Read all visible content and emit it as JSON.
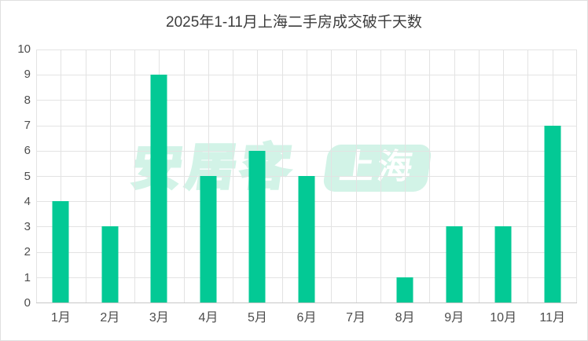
{
  "title": "2025年1-11月上海二手房成交破千天数",
  "colors": {
    "bar": "#03c995",
    "grid": "#e3e3e3",
    "axis_line": "#c7c7c7",
    "tick_text": "#4d4d4d",
    "title_text": "#3d3d3d",
    "watermark": "#d2f3e7",
    "background": "#ffffff"
  },
  "watermark": {
    "brand": "安居客",
    "city": "上海"
  },
  "chart_data": {
    "type": "bar",
    "title": "2025年1-11月上海二手房成交破千天数",
    "categories": [
      "1月",
      "2月",
      "3月",
      "4月",
      "5月",
      "6月",
      "7月",
      "8月",
      "9月",
      "10月",
      "11月"
    ],
    "values": [
      4,
      3,
      9,
      5,
      6,
      5,
      0,
      1,
      3,
      3,
      7
    ],
    "xlabel": "",
    "ylabel": "",
    "ylim": [
      0,
      10
    ],
    "yticks": [
      0,
      1,
      2,
      3,
      4,
      5,
      6,
      7,
      8,
      9,
      10
    ],
    "grid": true,
    "legend": false
  }
}
